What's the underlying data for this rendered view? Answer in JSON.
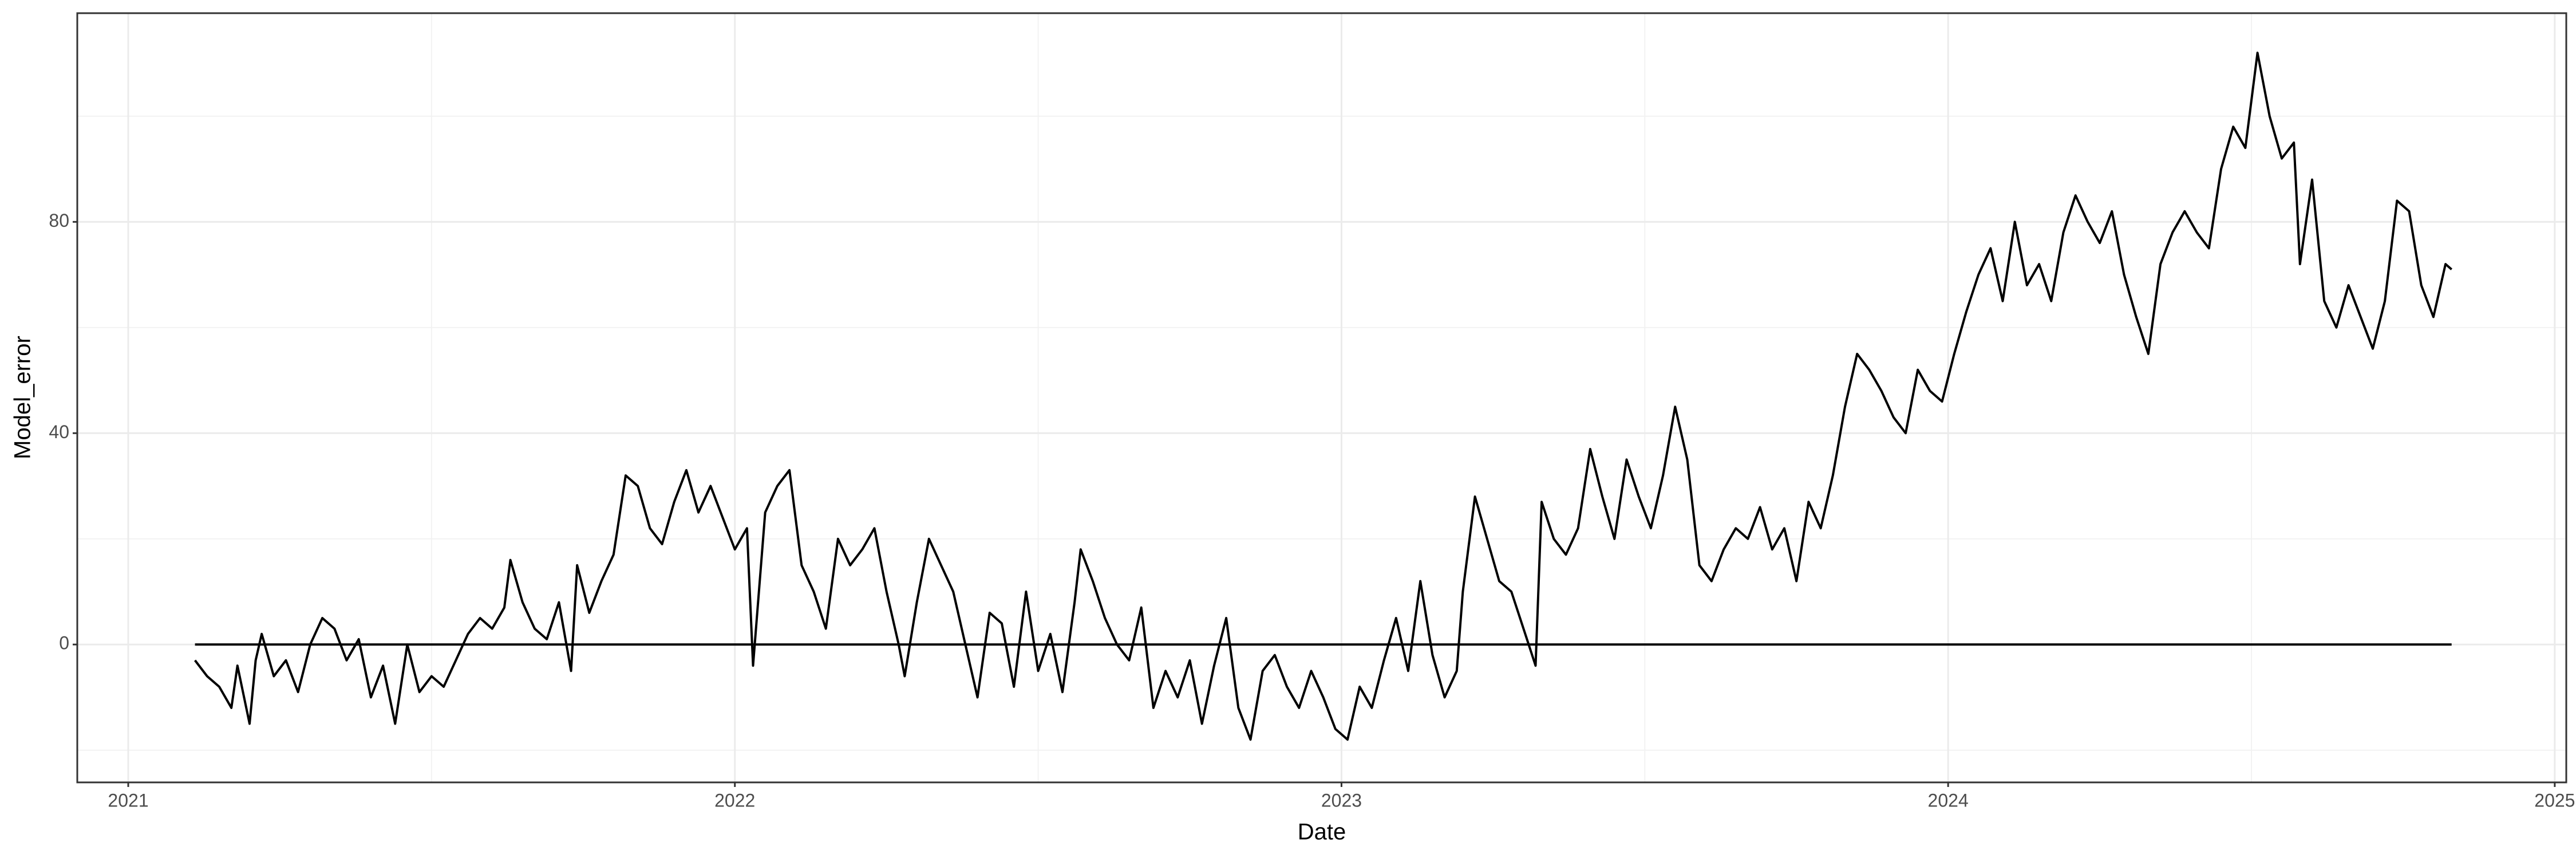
{
  "chart_data": {
    "type": "line",
    "x_label": "Date",
    "y_label": "Model_error",
    "xlim": [
      2020.916,
      2025.019
    ],
    "xticks": [
      2021,
      2022,
      2023,
      2024,
      2025
    ],
    "x_minor_grid": [
      2021.5,
      2022.5,
      2023.5,
      2024.5
    ],
    "ylim": [
      -26.1,
      119.5
    ],
    "yticks": [
      0,
      40,
      80
    ],
    "y_minor_grid": [
      -20,
      20,
      60,
      100
    ],
    "grid": true,
    "series": [
      {
        "color": "#000000",
        "x": [
          2021.11,
          2021.13,
          2021.15,
          2021.17,
          2021.18,
          2021.2,
          2021.21,
          2021.22,
          2021.24,
          2021.26,
          2021.28,
          2021.3,
          2021.32,
          2021.34,
          2021.36,
          2021.38,
          2021.4,
          2021.42,
          2021.44,
          2021.46,
          2021.48,
          2021.5,
          2021.52,
          2021.54,
          2021.56,
          2021.58,
          2021.6,
          2021.62,
          2021.63,
          2021.65,
          2021.67,
          2021.69,
          2021.71,
          2021.73,
          2021.74,
          2021.76,
          2021.78,
          2021.8,
          2021.82,
          2021.84,
          2021.86,
          2021.88,
          2021.9,
          2021.92,
          2021.94,
          2021.96,
          2021.98,
          2022.0,
          2022.02,
          2022.03,
          2022.05,
          2022.07,
          2022.09,
          2022.11,
          2022.13,
          2022.15,
          2022.17,
          2022.19,
          2022.21,
          2022.23,
          2022.25,
          2022.27,
          2022.28,
          2022.3,
          2022.32,
          2022.34,
          2022.36,
          2022.38,
          2022.4,
          2022.42,
          2022.44,
          2022.46,
          2022.48,
          2022.5,
          2022.52,
          2022.54,
          2022.56,
          2022.57,
          2022.59,
          2022.61,
          2022.63,
          2022.65,
          2022.67,
          2022.69,
          2022.71,
          2022.73,
          2022.75,
          2022.77,
          2022.79,
          2022.81,
          2022.83,
          2022.85,
          2022.87,
          2022.89,
          2022.91,
          2022.93,
          2022.95,
          2022.97,
          2022.99,
          2023.01,
          2023.03,
          2023.05,
          2023.07,
          2023.09,
          2023.11,
          2023.13,
          2023.15,
          2023.17,
          2023.19,
          2023.2,
          2023.22,
          2023.24,
          2023.26,
          2023.28,
          2023.3,
          2023.32,
          2023.33,
          2023.35,
          2023.37,
          2023.39,
          2023.41,
          2023.43,
          2023.45,
          2023.47,
          2023.49,
          2023.51,
          2023.53,
          2023.55,
          2023.57,
          2023.59,
          2023.61,
          2023.63,
          2023.65,
          2023.67,
          2023.69,
          2023.71,
          2023.73,
          2023.75,
          2023.77,
          2023.79,
          2023.81,
          2023.83,
          2023.85,
          2023.87,
          2023.89,
          2023.91,
          2023.93,
          2023.95,
          2023.97,
          2023.99,
          2024.01,
          2024.03,
          2024.05,
          2024.07,
          2024.09,
          2024.11,
          2024.13,
          2024.15,
          2024.17,
          2024.19,
          2024.21,
          2024.23,
          2024.25,
          2024.27,
          2024.29,
          2024.31,
          2024.33,
          2024.35,
          2024.37,
          2024.39,
          2024.41,
          2024.43,
          2024.45,
          2024.47,
          2024.49,
          2024.51,
          2024.53,
          2024.55,
          2024.57,
          2024.58,
          2024.6,
          2024.62,
          2024.64,
          2024.66,
          2024.68,
          2024.7,
          2024.72,
          2024.74,
          2024.76,
          2024.78,
          2024.8,
          2024.82,
          2024.83
        ],
        "values": [
          -3,
          -6,
          -8,
          -12,
          -4,
          -15,
          -3,
          2,
          -6,
          -3,
          -9,
          0,
          5,
          3,
          -3,
          1,
          -10,
          -4,
          -15,
          0,
          -9,
          -6,
          -8,
          -3,
          2,
          5,
          3,
          7,
          16,
          8,
          3,
          1,
          8,
          -5,
          15,
          6,
          12,
          17,
          32,
          30,
          22,
          19,
          27,
          33,
          25,
          30,
          24,
          18,
          22,
          -4,
          25,
          30,
          33,
          15,
          10,
          3,
          20,
          15,
          18,
          22,
          10,
          0,
          -6,
          8,
          20,
          15,
          10,
          0,
          -10,
          6,
          4,
          -8,
          10,
          -5,
          2,
          -9,
          8,
          18,
          12,
          5,
          0,
          -3,
          7,
          -12,
          -5,
          -10,
          -3,
          -15,
          -4,
          5,
          -12,
          -18,
          -5,
          -2,
          -8,
          -12,
          -5,
          -10,
          -16,
          -18,
          -8,
          -12,
          -3,
          5,
          -5,
          12,
          -2,
          -10,
          -5,
          10,
          28,
          20,
          12,
          10,
          3,
          -4,
          27,
          20,
          17,
          22,
          37,
          28,
          20,
          35,
          28,
          22,
          32,
          45,
          35,
          15,
          12,
          18,
          22,
          20,
          26,
          18,
          22,
          12,
          27,
          22,
          32,
          45,
          55,
          52,
          48,
          43,
          40,
          52,
          48,
          46,
          55,
          63,
          70,
          75,
          65,
          80,
          68,
          72,
          65,
          78,
          85,
          80,
          76,
          82,
          70,
          62,
          55,
          72,
          78,
          82,
          78,
          75,
          90,
          98,
          94,
          112,
          100,
          92,
          95,
          72,
          88,
          65,
          60,
          68,
          62,
          56,
          65,
          84,
          82,
          68,
          62,
          72,
          71
        ]
      },
      {
        "color": "#000000",
        "x": [
          2021.11,
          2024.83
        ],
        "values": [
          0,
          0
        ]
      }
    ]
  }
}
